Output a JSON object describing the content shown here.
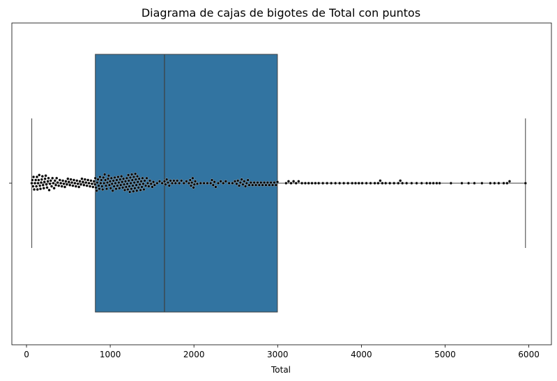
{
  "chart_data": {
    "type": "box",
    "title": "Diagrama de cajas de bigotes de Total con puntos",
    "xlabel": "Total",
    "ylabel": "",
    "xlim": [
      -175,
      6270
    ],
    "xticks": [
      0,
      1000,
      2000,
      3000,
      4000,
      5000,
      6000
    ],
    "xtick_labels": [
      "0",
      "1000",
      "2000",
      "3000",
      "4000",
      "5000",
      "6000"
    ],
    "box": {
      "whisker_low": 63,
      "q1": 822,
      "median": 1648,
      "q3": 2997,
      "whisker_high": 5960,
      "color": "#3274a1",
      "edge_color": "#3f3f3f"
    },
    "points_color": "#000000",
    "points": [
      63,
      70,
      78,
      84,
      92,
      101,
      110,
      118,
      125,
      131,
      138,
      145,
      152,
      160,
      167,
      175,
      182,
      190,
      198,
      206,
      214,
      222,
      230,
      238,
      246,
      255,
      263,
      271,
      280,
      290,
      300,
      310,
      320,
      330,
      340,
      350,
      360,
      372,
      385,
      398,
      410,
      422,
      434,
      446,
      458,
      470,
      482,
      494,
      506,
      518,
      530,
      542,
      554,
      566,
      578,
      590,
      602,
      614,
      626,
      638,
      650,
      662,
      674,
      686,
      698,
      710,
      722,
      734,
      746,
      758,
      770,
      782,
      794,
      806,
      818,
      822,
      830,
      838,
      846,
      854,
      862,
      870,
      878,
      886,
      894,
      902,
      910,
      918,
      926,
      934,
      942,
      950,
      958,
      966,
      974,
      982,
      990,
      998,
      1006,
      1014,
      1022,
      1030,
      1038,
      1046,
      1054,
      1062,
      1070,
      1078,
      1086,
      1094,
      1102,
      1110,
      1118,
      1126,
      1134,
      1142,
      1150,
      1158,
      1166,
      1174,
      1182,
      1190,
      1198,
      1204,
      1210,
      1216,
      1222,
      1228,
      1234,
      1240,
      1246,
      1252,
      1258,
      1264,
      1270,
      1276,
      1282,
      1288,
      1294,
      1300,
      1306,
      1312,
      1318,
      1324,
      1330,
      1338,
      1346,
      1354,
      1362,
      1370,
      1378,
      1386,
      1394,
      1402,
      1412,
      1424,
      1436,
      1448,
      1460,
      1474,
      1488,
      1502,
      1516,
      1530,
      1560,
      1590,
      1620,
      1648,
      1660,
      1675,
      1690,
      1705,
      1720,
      1740,
      1760,
      1780,
      1800,
      1825,
      1850,
      1880,
      1910,
      1940,
      1955,
      1965,
      1975,
      1985,
      1995,
      2005,
      2015,
      2040,
      2080,
      2120,
      2160,
      2200,
      2215,
      2230,
      2245,
      2260,
      2290,
      2320,
      2350,
      2380,
      2420,
      2460,
      2490,
      2510,
      2525,
      2540,
      2555,
      2570,
      2585,
      2600,
      2615,
      2630,
      2645,
      2660,
      2680,
      2700,
      2720,
      2740,
      2760,
      2780,
      2800,
      2820,
      2840,
      2860,
      2880,
      2900,
      2920,
      2940,
      2960,
      2980,
      2997,
      3100,
      3130,
      3160,
      3190,
      3220,
      3250,
      3290,
      3330,
      3370,
      3410,
      3450,
      3490,
      3540,
      3590,
      3640,
      3690,
      3740,
      3790,
      3840,
      3890,
      3930,
      3970,
      4010,
      4060,
      4110,
      4160,
      4200,
      4225,
      4250,
      4290,
      4340,
      4390,
      4440,
      4465,
      4490,
      4540,
      4600,
      4660,
      4720,
      4780,
      4820,
      4860,
      4900,
      4935,
      5070,
      5200,
      5280,
      5350,
      5440,
      5540,
      5590,
      5640,
      5700,
      5740,
      5770,
      5960
    ]
  }
}
